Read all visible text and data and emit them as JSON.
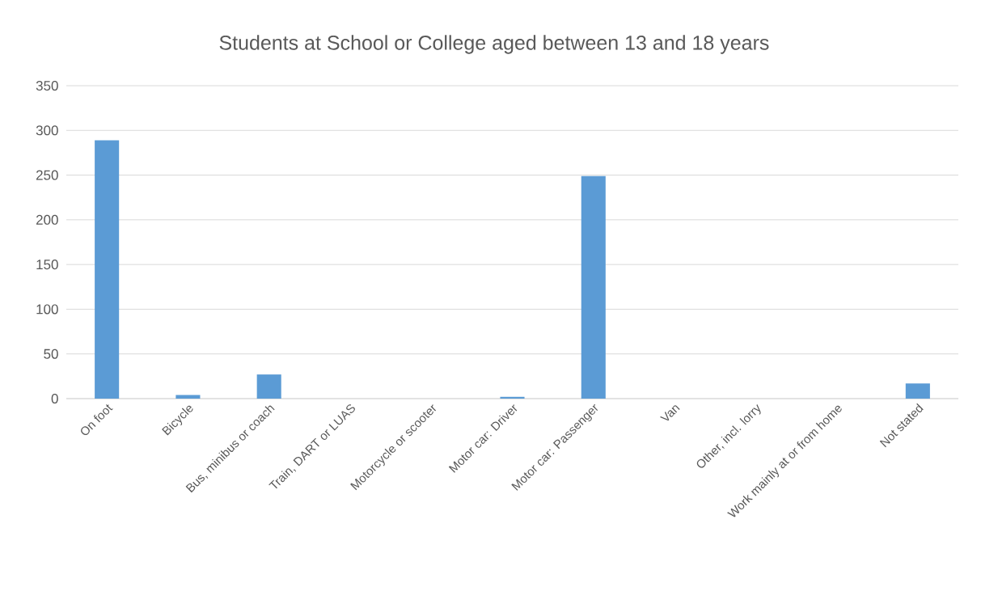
{
  "chart_data": {
    "type": "bar",
    "title": "Students at School or College aged between 13 and 18 years",
    "categories": [
      "On foot",
      "Bicycle",
      "Bus, minibus or coach",
      "Train, DART or LUAS",
      "Motorcycle or scooter",
      "Motor car: Driver",
      "Motor car: Passenger",
      "Van",
      "Other, incl. lorry",
      "Work mainly at or from home",
      "Not stated"
    ],
    "values": [
      289,
      4,
      27,
      0,
      0,
      2,
      249,
      0,
      0,
      0,
      17
    ],
    "color": "#5b9bd5",
    "ylim": [
      0,
      350
    ],
    "yticks": [
      0,
      50,
      100,
      150,
      200,
      250,
      300,
      350
    ],
    "grid": "y"
  }
}
